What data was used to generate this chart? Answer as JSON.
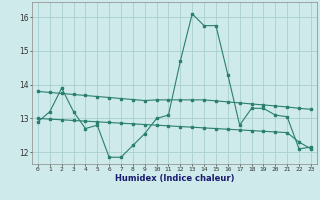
{
  "x": [
    0,
    1,
    2,
    3,
    4,
    5,
    6,
    7,
    8,
    9,
    10,
    11,
    12,
    13,
    14,
    15,
    16,
    17,
    18,
    19,
    20,
    21,
    22,
    23
  ],
  "line1": [
    12.9,
    13.2,
    13.9,
    13.2,
    12.7,
    12.8,
    11.85,
    11.85,
    12.2,
    12.55,
    13.0,
    13.1,
    14.7,
    16.1,
    15.75,
    15.75,
    14.3,
    12.8,
    13.3,
    13.3,
    13.1,
    13.05,
    12.1,
    12.15
  ],
  "line2": [
    13.8,
    13.77,
    13.74,
    13.71,
    13.68,
    13.65,
    13.62,
    13.59,
    13.56,
    13.53,
    13.55,
    13.55,
    13.55,
    13.55,
    13.55,
    13.52,
    13.49,
    13.46,
    13.43,
    13.4,
    13.37,
    13.34,
    13.3,
    13.27
  ],
  "line3": [
    13.0,
    12.98,
    12.96,
    12.94,
    12.92,
    12.9,
    12.88,
    12.86,
    12.84,
    12.82,
    12.8,
    12.78,
    12.76,
    12.74,
    12.72,
    12.7,
    12.68,
    12.66,
    12.64,
    12.62,
    12.6,
    12.58,
    12.3,
    12.1
  ],
  "line_color": "#2a7f6f",
  "bg_color": "#ceeaea",
  "grid_color": "#aacfcf",
  "xlabel": "Humidex (Indice chaleur)",
  "ylabel_ticks": [
    12,
    13,
    14,
    15,
    16
  ],
  "xlim": [
    -0.5,
    23.5
  ],
  "ylim": [
    11.65,
    16.45
  ]
}
